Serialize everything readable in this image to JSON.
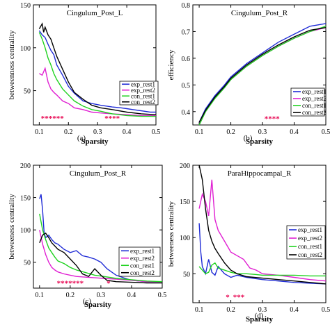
{
  "colors": {
    "exp_rest1": "#1f2bd6",
    "exp_rest2": "#e01fd2",
    "con_rest1": "#1fd21f",
    "con_rest2": "#000000",
    "stars": "#e8004e"
  },
  "chart_data": [
    {
      "type": "line",
      "panel": "(a)",
      "title": "Cingulum_Post_L",
      "xlabel": "Sparsity",
      "ylabel": "betweenness centrality",
      "xlim": [
        0.08,
        0.5
      ],
      "ylim": [
        10,
        150
      ],
      "xticks": [
        "0.1",
        "0.2",
        "0.3",
        "0.4",
        "0.5"
      ],
      "yticks": [
        {
          "v": 50,
          "label": "50"
        },
        {
          "v": 100,
          "label": "100"
        },
        {
          "v": 150,
          "label": "150"
        }
      ],
      "grid": false,
      "legend": "right",
      "series": [
        {
          "name": "exp_rest1",
          "x": [
            0.1,
            0.11,
            0.12,
            0.13,
            0.14,
            0.15,
            0.16,
            0.18,
            0.2,
            0.22,
            0.25,
            0.28,
            0.31,
            0.35,
            0.38,
            0.4,
            0.42,
            0.44,
            0.46,
            0.48,
            0.5
          ],
          "y": [
            120,
            115,
            112,
            104,
            97,
            92,
            80,
            68,
            55,
            47,
            38,
            35,
            33,
            31,
            30,
            29,
            28,
            27,
            26,
            25,
            25
          ]
        },
        {
          "name": "exp_rest2",
          "x": [
            0.1,
            0.11,
            0.12,
            0.13,
            0.14,
            0.15,
            0.16,
            0.18,
            0.2,
            0.22,
            0.25,
            0.28,
            0.31,
            0.35,
            0.4,
            0.45,
            0.5
          ],
          "y": [
            70,
            68,
            76,
            60,
            52,
            48,
            45,
            38,
            35,
            30,
            28,
            25,
            24,
            23,
            22,
            21,
            21
          ]
        },
        {
          "name": "con_rest1",
          "x": [
            0.1,
            0.11,
            0.12,
            0.13,
            0.14,
            0.15,
            0.16,
            0.18,
            0.2,
            0.22,
            0.25,
            0.28,
            0.31,
            0.35,
            0.4,
            0.45,
            0.5
          ],
          "y": [
            118,
            110,
            100,
            88,
            80,
            70,
            63,
            52,
            45,
            38,
            32,
            28,
            26,
            23,
            21,
            20,
            20
          ]
        },
        {
          "name": "con_rest2",
          "x": [
            0.1,
            0.11,
            0.115,
            0.12,
            0.13,
            0.14,
            0.15,
            0.16,
            0.18,
            0.2,
            0.22,
            0.25,
            0.28,
            0.31,
            0.35,
            0.4,
            0.45,
            0.5
          ],
          "y": [
            122,
            128,
            118,
            124,
            115,
            110,
            100,
            90,
            75,
            60,
            48,
            40,
            33,
            30,
            28,
            25,
            23,
            22
          ]
        }
      ],
      "annotations": [
        {
          "text": "******",
          "x": 0.145,
          "y": 18
        },
        {
          "text": "****",
          "x": 0.35,
          "y": 18
        }
      ]
    },
    {
      "type": "line",
      "panel": "(b)",
      "title": "Cingulum_Post_R",
      "xlabel": "Sparsity",
      "ylabel": "efficiency",
      "xlim": [
        0.08,
        0.5
      ],
      "ylim": [
        0.35,
        0.8
      ],
      "xticks": [
        "0.1",
        "0.2",
        "0.3",
        "0.4",
        "0.5"
      ],
      "yticks": [
        {
          "v": 0.4,
          "label": "0.4"
        },
        {
          "v": 0.5,
          "label": "0.5"
        },
        {
          "v": 0.6,
          "label": "0.6"
        },
        {
          "v": 0.7,
          "label": "0.7"
        },
        {
          "v": 0.8,
          "label": "0.8"
        }
      ],
      "grid": false,
      "legend": "bottom-right",
      "series": [
        {
          "name": "exp_rest1",
          "x": [
            0.1,
            0.12,
            0.15,
            0.18,
            0.2,
            0.25,
            0.3,
            0.35,
            0.4,
            0.45,
            0.5
          ],
          "y": [
            0.36,
            0.41,
            0.46,
            0.5,
            0.53,
            0.58,
            0.62,
            0.66,
            0.69,
            0.72,
            0.73
          ]
        },
        {
          "name": "exp_rest2",
          "x": [
            0.1,
            0.12,
            0.15,
            0.18,
            0.2,
            0.25,
            0.3,
            0.35,
            0.4,
            0.45,
            0.5
          ],
          "y": [
            0.35,
            0.4,
            0.45,
            0.49,
            0.52,
            0.57,
            0.61,
            0.645,
            0.675,
            0.7,
            0.715
          ]
        },
        {
          "name": "con_rest1",
          "x": [
            0.1,
            0.12,
            0.15,
            0.18,
            0.2,
            0.25,
            0.3,
            0.35,
            0.4,
            0.45,
            0.5
          ],
          "y": [
            0.35,
            0.4,
            0.45,
            0.49,
            0.52,
            0.57,
            0.61,
            0.645,
            0.675,
            0.7,
            0.72
          ]
        },
        {
          "name": "con_rest2",
          "x": [
            0.1,
            0.12,
            0.15,
            0.18,
            0.2,
            0.25,
            0.3,
            0.35,
            0.4,
            0.45,
            0.5
          ],
          "y": [
            0.36,
            0.405,
            0.455,
            0.495,
            0.525,
            0.575,
            0.615,
            0.65,
            0.68,
            0.705,
            0.715
          ]
        }
      ],
      "annotations": [
        {
          "text": "****",
          "x": 0.33,
          "y": 0.375
        }
      ]
    },
    {
      "type": "line",
      "panel": "(c)",
      "title": "Cingulum_Post_R",
      "xlabel": "Sparsity",
      "ylabel": "betweeness centrality",
      "xlim": [
        0.08,
        0.5
      ],
      "ylim": [
        10,
        200
      ],
      "xticks": [
        "0.1",
        "0.2",
        "0.3",
        "0.4",
        "0.5"
      ],
      "yticks": [
        {
          "v": 50,
          "label": "50"
        },
        {
          "v": 100,
          "label": "100"
        },
        {
          "v": 150,
          "label": "150"
        },
        {
          "v": 200,
          "label": "200"
        }
      ],
      "grid": false,
      "legend": "right",
      "series": [
        {
          "name": "exp_rest1",
          "x": [
            0.1,
            0.105,
            0.11,
            0.115,
            0.12,
            0.13,
            0.14,
            0.15,
            0.16,
            0.18,
            0.2,
            0.22,
            0.24,
            0.26,
            0.28,
            0.3,
            0.32,
            0.35,
            0.38,
            0.4,
            0.45,
            0.5
          ],
          "y": [
            148,
            155,
            130,
            95,
            88,
            92,
            85,
            80,
            78,
            70,
            65,
            68,
            60,
            58,
            55,
            50,
            40,
            30,
            25,
            22,
            20,
            20
          ]
        },
        {
          "name": "exp_rest2",
          "x": [
            0.1,
            0.11,
            0.12,
            0.13,
            0.14,
            0.15,
            0.16,
            0.18,
            0.2,
            0.22,
            0.25,
            0.28,
            0.31,
            0.35,
            0.4,
            0.45,
            0.5
          ],
          "y": [
            100,
            78,
            62,
            50,
            42,
            38,
            35,
            32,
            30,
            28,
            27,
            26,
            25,
            24,
            22,
            20,
            20
          ]
        },
        {
          "name": "con_rest1",
          "x": [
            0.1,
            0.11,
            0.12,
            0.13,
            0.14,
            0.15,
            0.16,
            0.18,
            0.2,
            0.22,
            0.25,
            0.28,
            0.31,
            0.35,
            0.4,
            0.45,
            0.5
          ],
          "y": [
            125,
            100,
            85,
            72,
            65,
            58,
            52,
            48,
            42,
            38,
            34,
            30,
            28,
            25,
            23,
            21,
            20
          ]
        },
        {
          "name": "con_rest2",
          "x": [
            0.1,
            0.11,
            0.12,
            0.13,
            0.14,
            0.15,
            0.16,
            0.18,
            0.2,
            0.22,
            0.24,
            0.26,
            0.28,
            0.3,
            0.32,
            0.35,
            0.4,
            0.45,
            0.5
          ],
          "y": [
            80,
            92,
            95,
            88,
            80,
            75,
            70,
            65,
            55,
            45,
            32,
            28,
            40,
            30,
            22,
            20,
            19,
            18,
            18
          ]
        }
      ],
      "annotations": [
        {
          "text": "*******",
          "x": 0.2,
          "y": 18
        },
        {
          "text": "*",
          "x": 0.325,
          "y": 18
        }
      ]
    },
    {
      "type": "line",
      "panel": "(d)",
      "title": "ParaHippocampal_R",
      "xlabel": "Sparsity",
      "ylabel": "betweeness centrality",
      "xlim": [
        0.08,
        0.5
      ],
      "ylim": [
        10,
        200
      ],
      "xticks": [
        "0.1",
        "0.2",
        "0.3",
        "0.4",
        "0.5"
      ],
      "yticks": [
        {
          "v": 50,
          "label": "50"
        },
        {
          "v": 100,
          "label": "100"
        },
        {
          "v": 150,
          "label": "150"
        },
        {
          "v": 200,
          "label": "200"
        }
      ],
      "grid": false,
      "legend": "right",
      "series": [
        {
          "name": "exp_rest1",
          "x": [
            0.1,
            0.105,
            0.11,
            0.12,
            0.13,
            0.14,
            0.15,
            0.16,
            0.18,
            0.2,
            0.22,
            0.25,
            0.3,
            0.35,
            0.4,
            0.45,
            0.5
          ],
          "y": [
            120,
            80,
            60,
            50,
            70,
            52,
            48,
            60,
            50,
            45,
            48,
            45,
            42,
            40,
            38,
            37,
            36
          ]
        },
        {
          "name": "exp_rest2",
          "x": [
            0.1,
            0.11,
            0.12,
            0.13,
            0.14,
            0.15,
            0.16,
            0.18,
            0.2,
            0.22,
            0.24,
            0.26,
            0.28,
            0.3,
            0.35,
            0.4,
            0.45,
            0.5
          ],
          "y": [
            140,
            160,
            150,
            130,
            180,
            125,
            110,
            95,
            80,
            75,
            70,
            58,
            55,
            50,
            48,
            45,
            42,
            40
          ]
        },
        {
          "name": "con_rest1",
          "x": [
            0.1,
            0.11,
            0.12,
            0.13,
            0.14,
            0.15,
            0.16,
            0.18,
            0.2,
            0.22,
            0.25,
            0.28,
            0.3,
            0.35,
            0.4,
            0.45,
            0.5
          ],
          "y": [
            60,
            55,
            50,
            52,
            62,
            65,
            58,
            55,
            52,
            50,
            50,
            49,
            48,
            48,
            48,
            47,
            47
          ]
        },
        {
          "name": "con_rest2",
          "x": [
            0.1,
            0.11,
            0.12,
            0.13,
            0.14,
            0.15,
            0.16,
            0.18,
            0.2,
            0.22,
            0.25,
            0.3,
            0.35,
            0.4,
            0.45,
            0.5
          ],
          "y": [
            200,
            180,
            140,
            110,
            95,
            85,
            78,
            65,
            55,
            50,
            46,
            44,
            42,
            40,
            38,
            36
          ]
        }
      ],
      "annotations": [
        {
          "text": "*",
          "x": 0.19,
          "y": 18
        },
        {
          "text": "***",
          "x": 0.225,
          "y": 18
        }
      ]
    }
  ]
}
